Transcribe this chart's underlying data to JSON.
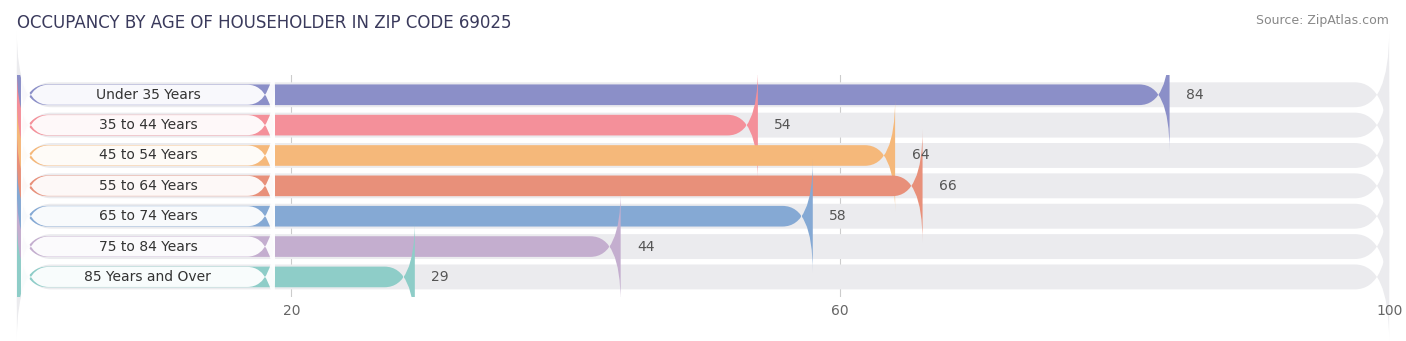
{
  "title": "OCCUPANCY BY AGE OF HOUSEHOLDER IN ZIP CODE 69025",
  "source": "Source: ZipAtlas.com",
  "categories": [
    "Under 35 Years",
    "35 to 44 Years",
    "45 to 54 Years",
    "55 to 64 Years",
    "65 to 74 Years",
    "75 to 84 Years",
    "85 Years and Over"
  ],
  "values": [
    84,
    54,
    64,
    66,
    58,
    44,
    29
  ],
  "bar_colors": [
    "#8B8FC8",
    "#F4909A",
    "#F5B87A",
    "#E8907A",
    "#85A9D4",
    "#C4AECF",
    "#8ECDC8"
  ],
  "bar_bg_color": "#EBEBEE",
  "bar_bg_color2": "#F5F5F8",
  "white_pill_color": "#FFFFFF",
  "xlim_max": 100,
  "xticks": [
    20,
    60,
    100
  ],
  "title_fontsize": 12,
  "label_fontsize": 10,
  "value_fontsize": 10,
  "source_fontsize": 9,
  "title_color": "#3A3A5C",
  "label_color": "#333333",
  "value_color_white": "#FFFFFF",
  "value_color_dark": "#555555",
  "background_color": "#FFFFFF",
  "grid_color": "#CCCCCC"
}
